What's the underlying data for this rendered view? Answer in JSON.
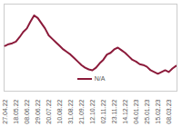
{
  "chart_data": {
    "type": "line",
    "categories": [
      "27.04.22",
      null,
      null,
      "18.05.22",
      null,
      null,
      "08.06.22",
      null,
      null,
      "29.06.22",
      null,
      null,
      "20.07.22",
      null,
      null,
      "10.08.22",
      null,
      null,
      "31.08.22",
      null,
      null,
      "21.09.22",
      null,
      null,
      "12.10.22",
      null,
      null,
      "02.11.22",
      null,
      null,
      "23.11.22",
      null,
      null,
      "14.12.22",
      null,
      null,
      "04.01.23",
      null,
      null,
      "25.01.23",
      null,
      null,
      "15.02.23",
      null,
      null,
      "08.03.23",
      null,
      null
    ],
    "series": [
      {
        "name": "N/A",
        "color": "#8b1a3a",
        "values": [
          52,
          54,
          55,
          57,
          62,
          68,
          72,
          80,
          87,
          84,
          78,
          72,
          64,
          60,
          56,
          52,
          48,
          45,
          42,
          38,
          34,
          30,
          27,
          25,
          24,
          27,
          32,
          36,
          42,
          44,
          48,
          50,
          47,
          44,
          40,
          36,
          34,
          31,
          30,
          28,
          24,
          22,
          20,
          22,
          24,
          22,
          26,
          29
        ]
      }
    ],
    "ylim": [
      0,
      100
    ],
    "tick_labels": "x",
    "legend": "bottom",
    "grid": false
  }
}
